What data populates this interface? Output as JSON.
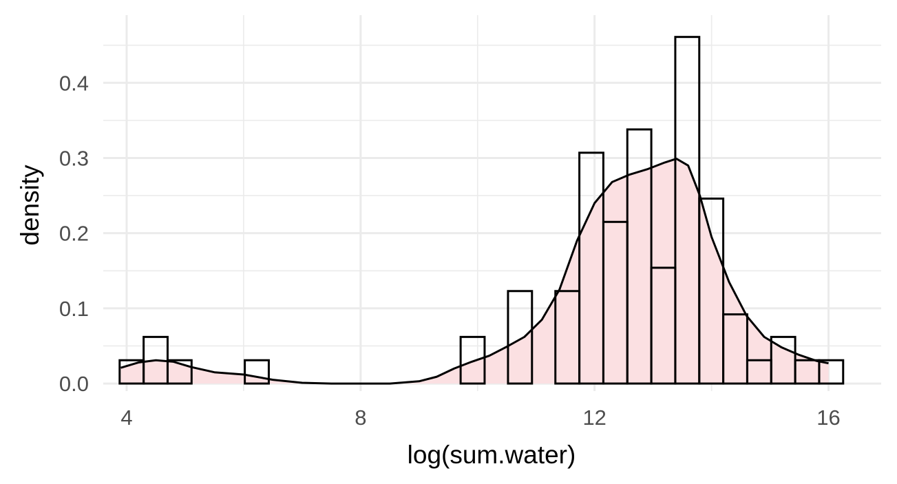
{
  "chart_data": {
    "type": "bar",
    "xlabel": "log(sum.water)",
    "ylabel": "density",
    "xlim": [
      3.6,
      16.9
    ],
    "ylim": [
      -0.01,
      0.49
    ],
    "x_ticks": [
      4,
      8,
      12,
      16
    ],
    "x_tick_labels": [
      "4",
      "8",
      "12",
      "16"
    ],
    "y_ticks": [
      0.0,
      0.1,
      0.2,
      0.3,
      0.4
    ],
    "y_tick_labels": [
      "0.0",
      "0.1",
      "0.2",
      "0.3",
      "0.4"
    ],
    "grid": true,
    "bin_width": 0.41,
    "bins": [
      {
        "x0": 3.88,
        "value": 0.031
      },
      {
        "x0": 4.29,
        "value": 0.062
      },
      {
        "x0": 4.7,
        "value": 0.031
      },
      {
        "x0": 6.02,
        "value": 0.031
      },
      {
        "x0": 9.71,
        "value": 0.062
      },
      {
        "x0": 10.52,
        "value": 0.123
      },
      {
        "x0": 11.33,
        "value": 0.123
      },
      {
        "x0": 11.74,
        "value": 0.307
      },
      {
        "x0": 12.15,
        "value": 0.215
      },
      {
        "x0": 12.56,
        "value": 0.338
      },
      {
        "x0": 12.97,
        "value": 0.154
      },
      {
        "x0": 13.38,
        "value": 0.461
      },
      {
        "x0": 13.79,
        "value": 0.246
      },
      {
        "x0": 14.2,
        "value": 0.092
      },
      {
        "x0": 14.61,
        "value": 0.031
      },
      {
        "x0": 15.02,
        "value": 0.062
      },
      {
        "x0": 15.43,
        "value": 0.031
      },
      {
        "x0": 15.84,
        "value": 0.031
      }
    ],
    "density_curve": {
      "x": [
        3.9,
        4.2,
        4.5,
        4.8,
        5.1,
        5.5,
        6.0,
        6.5,
        7.0,
        7.5,
        8.0,
        8.5,
        9.0,
        9.3,
        9.6,
        9.9,
        10.2,
        10.5,
        10.8,
        11.1,
        11.4,
        11.7,
        12.0,
        12.3,
        12.6,
        12.9,
        13.2,
        13.4,
        13.6,
        13.8,
        14.0,
        14.3,
        14.6,
        14.9,
        15.2,
        15.5,
        15.8,
        16.0
      ],
      "y": [
        0.021,
        0.028,
        0.031,
        0.029,
        0.022,
        0.015,
        0.012,
        0.005,
        0.001,
        0.0,
        0.0,
        0.0,
        0.003,
        0.009,
        0.02,
        0.029,
        0.037,
        0.049,
        0.062,
        0.085,
        0.125,
        0.19,
        0.24,
        0.268,
        0.278,
        0.285,
        0.294,
        0.299,
        0.29,
        0.25,
        0.195,
        0.135,
        0.09,
        0.062,
        0.048,
        0.038,
        0.03,
        0.027
      ]
    },
    "colors": {
      "fill": "#fbe0e2",
      "bar_outline": "#000000",
      "curve": "#000000",
      "grid": "#ebebeb"
    }
  }
}
